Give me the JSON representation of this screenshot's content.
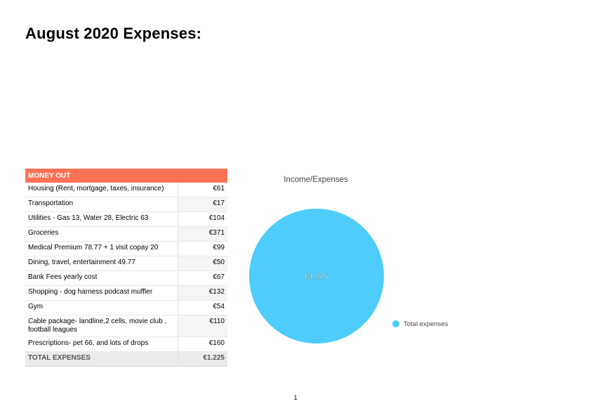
{
  "page_title": "August 2020 Expenses:",
  "table": {
    "header": "MONEY OUT",
    "rows": [
      {
        "label": "Housing (Rent, mortgage, taxes, insurance)",
        "value": "€61"
      },
      {
        "label": "Transportation",
        "value": "€17"
      },
      {
        "label": "Utilities - Gas 13, Water 28, Electric 63",
        "value": "€104"
      },
      {
        "label": "Groceries",
        "value": "€371"
      },
      {
        "label": "Medical Premium 78.77 + 1 visit copay 20",
        "value": "€99"
      },
      {
        "label": "Dining, travel, entertainment 49.77",
        "value": "€50"
      },
      {
        "label": "Bank Fees yearly cost",
        "value": "€67"
      },
      {
        "label": "Shopping - dog harness podcast muffler",
        "value": "€132"
      },
      {
        "label": "Gym",
        "value": "€54"
      },
      {
        "label": "Cable package- landline,2 cells, movie club , football leagues",
        "value": "€110"
      },
      {
        "label": "Prescriptions- pet 66, and lots of drops",
        "value": "€160"
      }
    ],
    "total_label": "TOTAL EXPENSES",
    "total_value": "€1.225"
  },
  "chart_data": {
    "type": "pie",
    "title": "Income/Expenses",
    "slices": [
      {
        "label": "Total expenses",
        "value": 1225,
        "display": "€1.225",
        "color": "#4ecdfc"
      }
    ],
    "legend": "right"
  },
  "page_number": "1"
}
